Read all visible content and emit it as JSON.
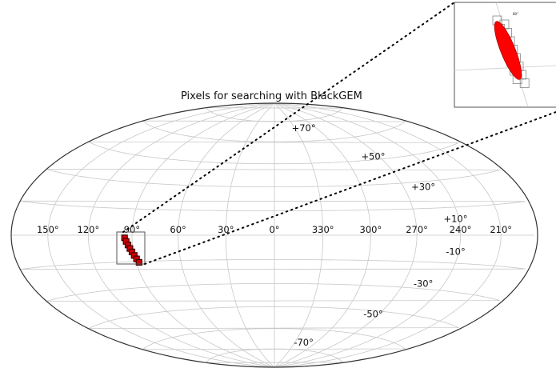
{
  "chart_data": {
    "type": "scatter",
    "projection": "aitoff-hammer (mollweide-like)",
    "title": "Pixels for searching with BlackGEM",
    "xlabel": "",
    "ylabel": "",
    "grid": true,
    "x_ticks": [
      "150°",
      "120°",
      "90°",
      "60°",
      "30°",
      "0°",
      "330°",
      "300°",
      "270°",
      "240°",
      "210°"
    ],
    "x_tick_values": [
      150,
      120,
      90,
      60,
      30,
      0,
      330,
      300,
      270,
      240,
      210
    ],
    "y_ticks": [
      "+70°",
      "+50°",
      "+30°",
      "+10°",
      "-10°",
      "-30°",
      "-50°",
      "-70°"
    ],
    "y_tick_values": [
      70,
      50,
      30,
      10,
      -10,
      -30,
      -50,
      -70
    ],
    "region_color": "#d40000",
    "pixel_outline_color": "#3a0000",
    "pixels": [
      {
        "ra": 95,
        "dec": -1.5
      },
      {
        "ra": 94,
        "dec": -3.5
      },
      {
        "ra": 93,
        "dec": -5.5
      },
      {
        "ra": 92,
        "dec": -7.5
      },
      {
        "ra": 91,
        "dec": -9.5
      },
      {
        "ra": 90,
        "dec": -11.5
      },
      {
        "ra": 89,
        "dec": -13.5
      },
      {
        "ra": 88,
        "dec": -15.5
      }
    ],
    "inset": {
      "label": "80°",
      "zoom_region": {
        "ra_min": 85,
        "ra_max": 100,
        "dec_min": -18,
        "dec_max": 2
      }
    }
  }
}
